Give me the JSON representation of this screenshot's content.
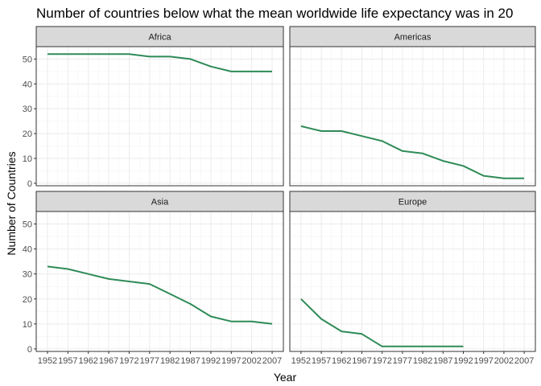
{
  "chart_data": {
    "type": "line",
    "title": "Number of countries below what the mean worldwide life expectancy was in 20",
    "xlabel": "Year",
    "ylabel": "Number of Countries",
    "x": [
      1952,
      1957,
      1962,
      1967,
      1972,
      1977,
      1982,
      1987,
      1992,
      1997,
      2002,
      2007
    ],
    "x_ticks": [
      "1952",
      "1957",
      "1962",
      "1967",
      "1972",
      "1977",
      "1982",
      "1987",
      "1992",
      "1997",
      "2002",
      "2007"
    ],
    "y_ticks": [
      "0",
      "10",
      "20",
      "30",
      "40",
      "50"
    ],
    "xlim": [
      1949.25,
      2009.75
    ],
    "ylim": [
      -1,
      55
    ],
    "grid": true,
    "facet_layout": "2x2",
    "line_color": "#2e8b57",
    "facets": [
      {
        "label": "Africa",
        "values": [
          52,
          52,
          52,
          52,
          52,
          51,
          51,
          50,
          47,
          45,
          45,
          45
        ]
      },
      {
        "label": "Americas",
        "values": [
          23,
          21,
          21,
          19,
          17,
          13,
          12,
          9,
          7,
          3,
          2,
          2
        ]
      },
      {
        "label": "Asia",
        "values": [
          33,
          32,
          30,
          28,
          27,
          26,
          22,
          18,
          13,
          11,
          11,
          10
        ]
      },
      {
        "label": "Europe",
        "values": [
          20,
          12,
          7,
          6,
          1,
          1,
          1,
          1,
          1,
          null,
          null,
          null
        ]
      }
    ]
  }
}
